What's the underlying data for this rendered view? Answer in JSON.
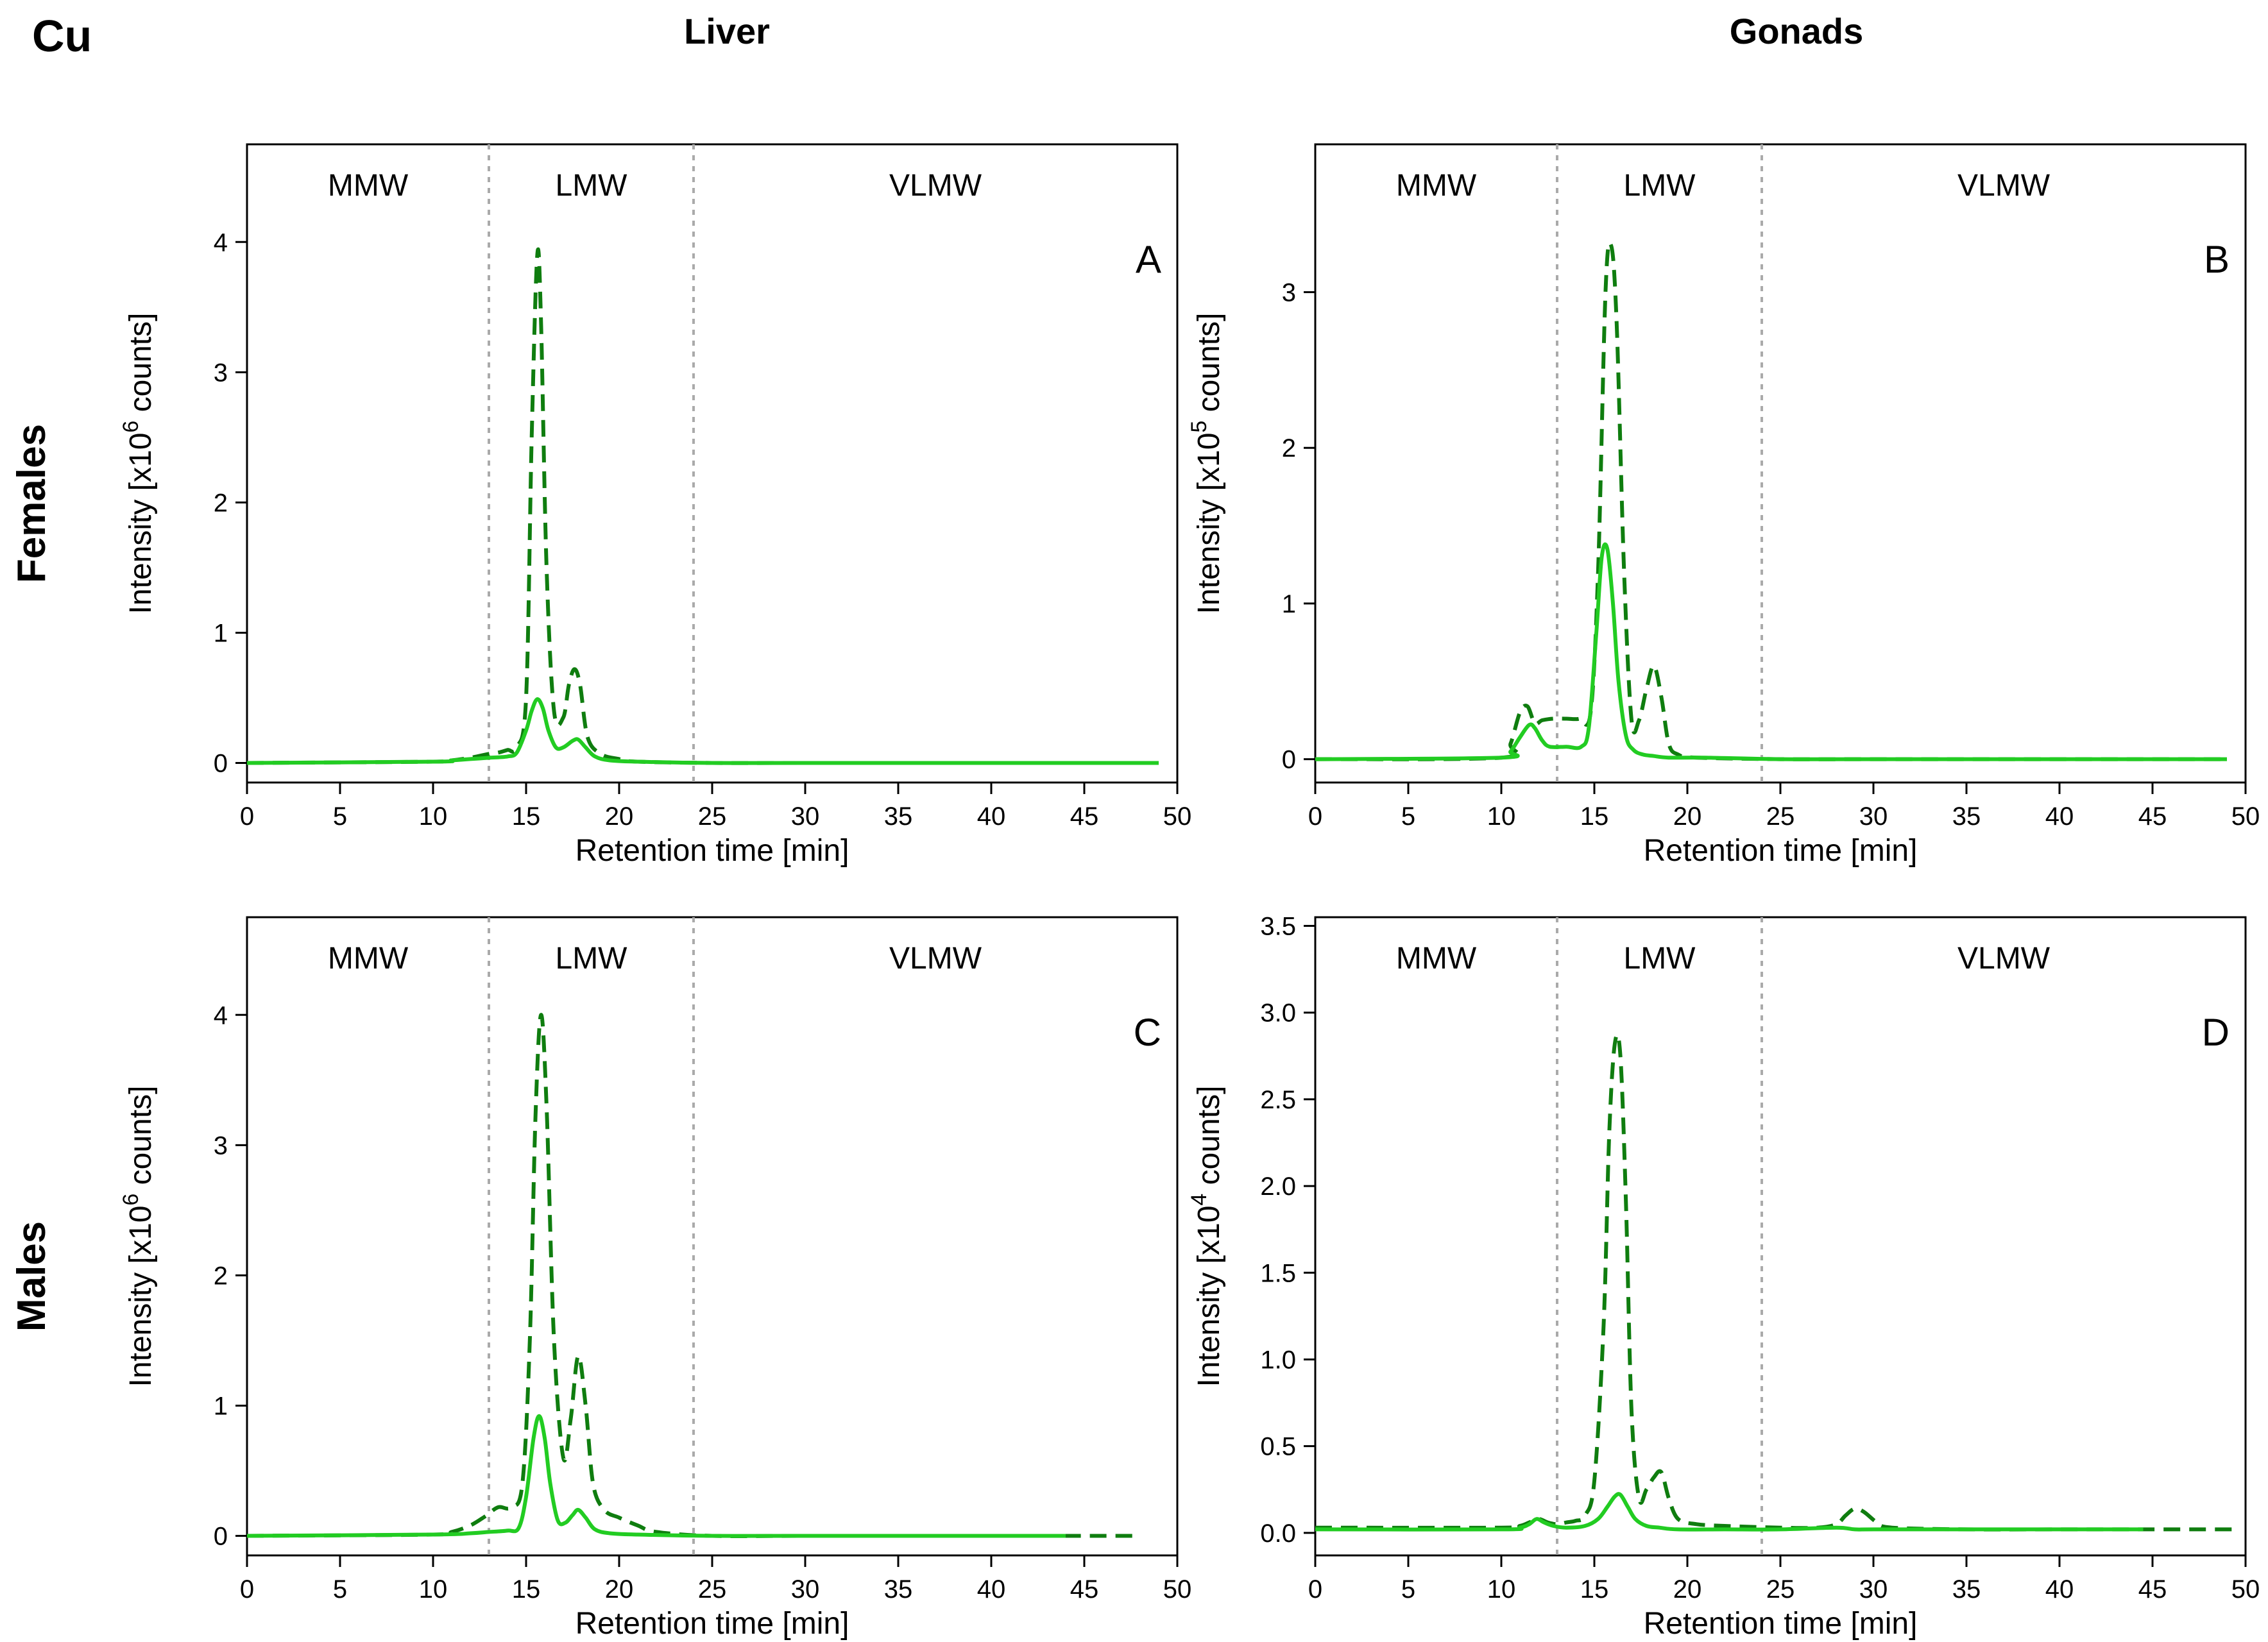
{
  "figure": {
    "element": "Cu",
    "col_titles": [
      "Liver",
      "Gonads"
    ],
    "row_titles": [
      "Females",
      "Males"
    ]
  },
  "style": {
    "dashed_color": "#0f7d0f",
    "solid_color": "#22cc22",
    "divider_color": "#aaaaaa"
  },
  "chart_data": [
    {
      "type": "line",
      "panel_label": "A",
      "xlabel": "Retention time [min]",
      "ylabel_prefix": "Intensity [x10",
      "ylabel_exp": "6",
      "ylabel_suffix": " counts]",
      "xlim": [
        0,
        50
      ],
      "ylim": [
        -0.15,
        4.75
      ],
      "xticks": [
        0,
        5,
        10,
        15,
        20,
        25,
        30,
        35,
        40,
        45,
        50
      ],
      "yticks": [
        {
          "v": 0,
          "label": "0"
        },
        {
          "v": 1,
          "label": "1"
        },
        {
          "v": 2,
          "label": "2"
        },
        {
          "v": 3,
          "label": "3"
        },
        {
          "v": 4,
          "label": "4"
        }
      ],
      "regions": [
        {
          "label": "MMW",
          "from": 0,
          "to": 13
        },
        {
          "label": "LMW",
          "from": 13,
          "to": 24
        },
        {
          "label": "VLMW",
          "from": 24,
          "to": 50
        }
      ],
      "dividers": [
        13,
        24
      ],
      "series": [
        {
          "style": "dashed",
          "x": [
            0,
            10,
            11,
            12,
            13,
            13.5,
            14,
            14.5,
            15,
            15.3,
            15.6,
            15.8,
            16.1,
            16.5,
            17,
            17.3,
            17.6,
            17.9,
            18.3,
            19,
            20,
            21,
            25,
            30,
            40,
            49
          ],
          "y": [
            0,
            0.01,
            0.02,
            0.04,
            0.07,
            0.08,
            0.1,
            0.12,
            0.5,
            2.5,
            3.9,
            3.4,
            1.5,
            0.4,
            0.35,
            0.6,
            0.72,
            0.6,
            0.2,
            0.07,
            0.03,
            0.01,
            0,
            0,
            0,
            0
          ]
        },
        {
          "style": "solid",
          "x": [
            0,
            10,
            11,
            12,
            13,
            14,
            14.5,
            15,
            15.3,
            15.6,
            15.9,
            16.2,
            16.6,
            17,
            17.5,
            17.8,
            18.2,
            18.7,
            19.5,
            21,
            25,
            30,
            40,
            49
          ],
          "y": [
            0,
            0.01,
            0.02,
            0.03,
            0.04,
            0.05,
            0.08,
            0.25,
            0.4,
            0.49,
            0.42,
            0.25,
            0.12,
            0.12,
            0.17,
            0.18,
            0.12,
            0.05,
            0.02,
            0.01,
            0,
            0,
            0,
            0
          ]
        }
      ]
    },
    {
      "type": "line",
      "panel_label": "B",
      "xlabel": "Retention time [min]",
      "ylabel_prefix": "Intensity [x10",
      "ylabel_exp": "5",
      "ylabel_suffix": " counts]",
      "xlim": [
        0,
        50
      ],
      "ylim": [
        -0.15,
        3.95
      ],
      "xticks": [
        0,
        5,
        10,
        15,
        20,
        25,
        30,
        35,
        40,
        45,
        50
      ],
      "yticks": [
        {
          "v": 0,
          "label": "0"
        },
        {
          "v": 1,
          "label": "1"
        },
        {
          "v": 2,
          "label": "2"
        },
        {
          "v": 3,
          "label": "3"
        }
      ],
      "regions": [
        {
          "label": "MMW",
          "from": 0,
          "to": 13
        },
        {
          "label": "LMW",
          "from": 13,
          "to": 24
        },
        {
          "label": "VLMW",
          "from": 24,
          "to": 50
        }
      ],
      "dividers": [
        13,
        24
      ],
      "series": [
        {
          "style": "dashed",
          "x": [
            0,
            10,
            10.5,
            11,
            11.4,
            11.8,
            12.2,
            12.8,
            13.5,
            14.2,
            14.8,
            15.2,
            15.6,
            15.9,
            16.2,
            16.6,
            17,
            17.4,
            17.8,
            18.2,
            18.6,
            19,
            19.5,
            20.5,
            25,
            30,
            40,
            49
          ],
          "y": [
            0,
            0.01,
            0.1,
            0.3,
            0.34,
            0.23,
            0.25,
            0.26,
            0.26,
            0.26,
            0.3,
            1.2,
            3.0,
            3.3,
            2.8,
            1.2,
            0.25,
            0.25,
            0.45,
            0.6,
            0.4,
            0.1,
            0.03,
            0.01,
            0,
            0,
            0,
            0
          ]
        },
        {
          "style": "solid",
          "x": [
            0,
            10,
            10.5,
            11,
            11.5,
            11.8,
            12.2,
            12.6,
            13.5,
            14.3,
            14.7,
            15.1,
            15.4,
            15.7,
            16,
            16.3,
            16.7,
            17.1,
            17.6,
            18.2,
            19,
            21,
            25,
            30,
            40,
            49
          ],
          "y": [
            0,
            0.01,
            0.05,
            0.14,
            0.22,
            0.2,
            0.12,
            0.08,
            0.08,
            0.08,
            0.2,
            0.8,
            1.3,
            1.35,
            1.0,
            0.5,
            0.15,
            0.06,
            0.03,
            0.02,
            0.01,
            0.01,
            0,
            0,
            0,
            0
          ]
        }
      ]
    },
    {
      "type": "line",
      "panel_label": "C",
      "xlabel": "Retention time [min]",
      "ylabel_prefix": "Intensity [x10",
      "ylabel_exp": "6",
      "ylabel_suffix": " counts]",
      "xlim": [
        0,
        50
      ],
      "ylim": [
        -0.15,
        4.75
      ],
      "xticks": [
        0,
        5,
        10,
        15,
        20,
        25,
        30,
        35,
        40,
        45,
        50
      ],
      "yticks": [
        {
          "v": 0,
          "label": "0"
        },
        {
          "v": 1,
          "label": "1"
        },
        {
          "v": 2,
          "label": "2"
        },
        {
          "v": 3,
          "label": "3"
        },
        {
          "v": 4,
          "label": "4"
        }
      ],
      "regions": [
        {
          "label": "MMW",
          "from": 0,
          "to": 13
        },
        {
          "label": "LMW",
          "from": 13,
          "to": 24
        },
        {
          "label": "VLMW",
          "from": 24,
          "to": 50
        }
      ],
      "dividers": [
        13,
        24
      ],
      "series": [
        {
          "style": "dashed",
          "x": [
            0,
            10,
            11,
            12,
            12.8,
            13.5,
            14.2,
            14.8,
            15.2,
            15.5,
            15.8,
            16.1,
            16.5,
            17,
            17.4,
            17.8,
            18.2,
            18.6,
            19.2,
            20,
            21,
            22,
            25,
            30,
            40,
            48
          ],
          "y": [
            0,
            0.01,
            0.03,
            0.08,
            0.15,
            0.22,
            0.22,
            0.4,
            1.5,
            3.2,
            4.0,
            3.3,
            1.5,
            0.6,
            0.9,
            1.38,
            1.0,
            0.4,
            0.2,
            0.14,
            0.08,
            0.03,
            0,
            0,
            0,
            0
          ]
        },
        {
          "style": "solid",
          "x": [
            0,
            10,
            12,
            13,
            14,
            14.6,
            15,
            15.4,
            15.7,
            16,
            16.3,
            16.7,
            17.1,
            17.5,
            17.8,
            18.2,
            18.7,
            19.5,
            21,
            25,
            30,
            44
          ],
          "y": [
            0,
            0.01,
            0.02,
            0.03,
            0.04,
            0.06,
            0.3,
            0.75,
            0.92,
            0.75,
            0.4,
            0.12,
            0.1,
            0.16,
            0.2,
            0.14,
            0.05,
            0.02,
            0.01,
            0,
            0,
            0
          ]
        }
      ]
    },
    {
      "type": "line",
      "panel_label": "D",
      "xlabel": "Retention time [min]",
      "ylabel_prefix": "Intensity [x10",
      "ylabel_exp": "4",
      "ylabel_suffix": " counts]",
      "xlim": [
        0,
        50
      ],
      "ylim": [
        -0.13,
        3.55
      ],
      "xticks": [
        0,
        5,
        10,
        15,
        20,
        25,
        30,
        35,
        40,
        45,
        50
      ],
      "yticks": [
        {
          "v": 0,
          "label": "0.0"
        },
        {
          "v": 0.5,
          "label": "0.5"
        },
        {
          "v": 1.0,
          "label": "1.0"
        },
        {
          "v": 1.5,
          "label": "1.5"
        },
        {
          "v": 2.0,
          "label": "2.0"
        },
        {
          "v": 2.5,
          "label": "2.5"
        },
        {
          "v": 3.0,
          "label": "3.0"
        },
        {
          "v": 3.5,
          "label": "3.5"
        }
      ],
      "regions": [
        {
          "label": "MMW",
          "from": 0,
          "to": 13
        },
        {
          "label": "LMW",
          "from": 13,
          "to": 24
        },
        {
          "label": "VLMW",
          "from": 24,
          "to": 50
        }
      ],
      "dividers": [
        13,
        24
      ],
      "series": [
        {
          "style": "dashed",
          "x": [
            0,
            10,
            11,
            11.5,
            12,
            12.5,
            13,
            13.5,
            14,
            14.5,
            15,
            15.5,
            15.8,
            16.1,
            16.4,
            16.7,
            17,
            17.4,
            17.8,
            18.2,
            18.6,
            19,
            19.5,
            20.5,
            22,
            25,
            27,
            28,
            28.5,
            29,
            29.5,
            30.2,
            31,
            35,
            40,
            45,
            49.5
          ],
          "y": [
            0.03,
            0.03,
            0.04,
            0.06,
            0.08,
            0.06,
            0.05,
            0.06,
            0.07,
            0.1,
            0.3,
            1.2,
            2.3,
            2.82,
            2.75,
            1.9,
            0.7,
            0.2,
            0.25,
            0.32,
            0.35,
            0.2,
            0.08,
            0.05,
            0.04,
            0.03,
            0.03,
            0.05,
            0.1,
            0.14,
            0.12,
            0.06,
            0.03,
            0.02,
            0.02,
            0.02,
            0.02
          ]
        },
        {
          "style": "solid",
          "x": [
            0,
            10,
            11,
            11.5,
            11.9,
            12.3,
            12.8,
            13.5,
            14.5,
            15.2,
            15.7,
            16.1,
            16.4,
            16.8,
            17.2,
            17.8,
            18.5,
            19.5,
            22,
            25,
            28,
            29,
            30,
            35,
            40,
            44.5
          ],
          "y": [
            0.02,
            0.02,
            0.03,
            0.05,
            0.08,
            0.06,
            0.04,
            0.03,
            0.04,
            0.08,
            0.15,
            0.21,
            0.22,
            0.15,
            0.08,
            0.04,
            0.03,
            0.02,
            0.02,
            0.02,
            0.03,
            0.02,
            0.02,
            0.02,
            0.02,
            0.02
          ]
        }
      ]
    }
  ]
}
